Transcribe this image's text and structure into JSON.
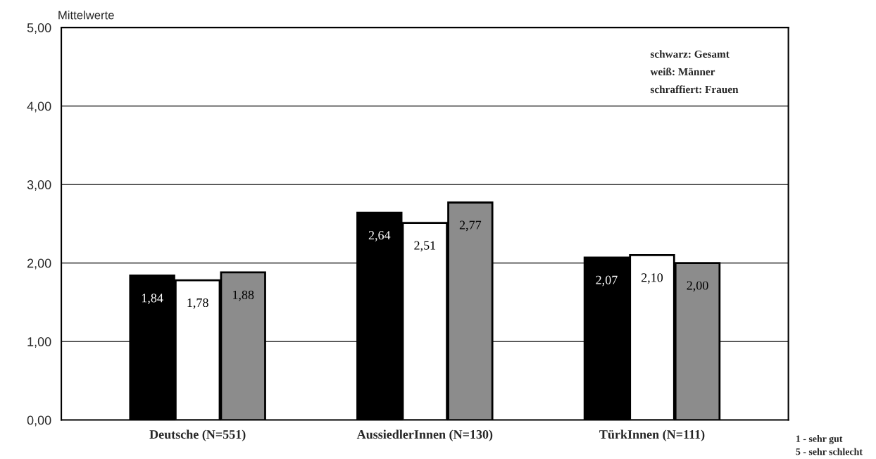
{
  "chart_data": {
    "type": "bar",
    "ylabel": "Mittelwerte",
    "categories": [
      "Deutsche (N=551)",
      "AussiedlerInnen (N=130)",
      "TürkInnen (N=111)"
    ],
    "series": [
      {
        "color": "#000000",
        "values": [
          1.84,
          2.64,
          2.07
        ],
        "value_labels": [
          "1,84",
          "2,64",
          "2,07"
        ]
      },
      {
        "color": "#ffffff",
        "values": [
          1.78,
          2.51,
          2.1
        ],
        "value_labels": [
          "1,78",
          "2,51",
          "2,10"
        ]
      },
      {
        "color": "#8c8c8c",
        "values": [
          1.88,
          2.77,
          2.0
        ],
        "value_labels": [
          "1,88",
          "2,77",
          "2,00"
        ]
      }
    ],
    "ylim": [
      0,
      5
    ],
    "yticks": [
      {
        "value": 0,
        "label": "0,00"
      },
      {
        "value": 1,
        "label": "1,00"
      },
      {
        "value": 2,
        "label": "2,00"
      },
      {
        "value": 3,
        "label": "3,00"
      },
      {
        "value": 4,
        "label": "4,00"
      },
      {
        "value": 5,
        "label": "5,00"
      }
    ],
    "grid": "y",
    "annotations": [
      "schwarz: Gesamt",
      "weiß: Männer",
      "schraffiert: Frauen",
      "1 - sehr gut",
      "5 - sehr schlecht"
    ]
  }
}
